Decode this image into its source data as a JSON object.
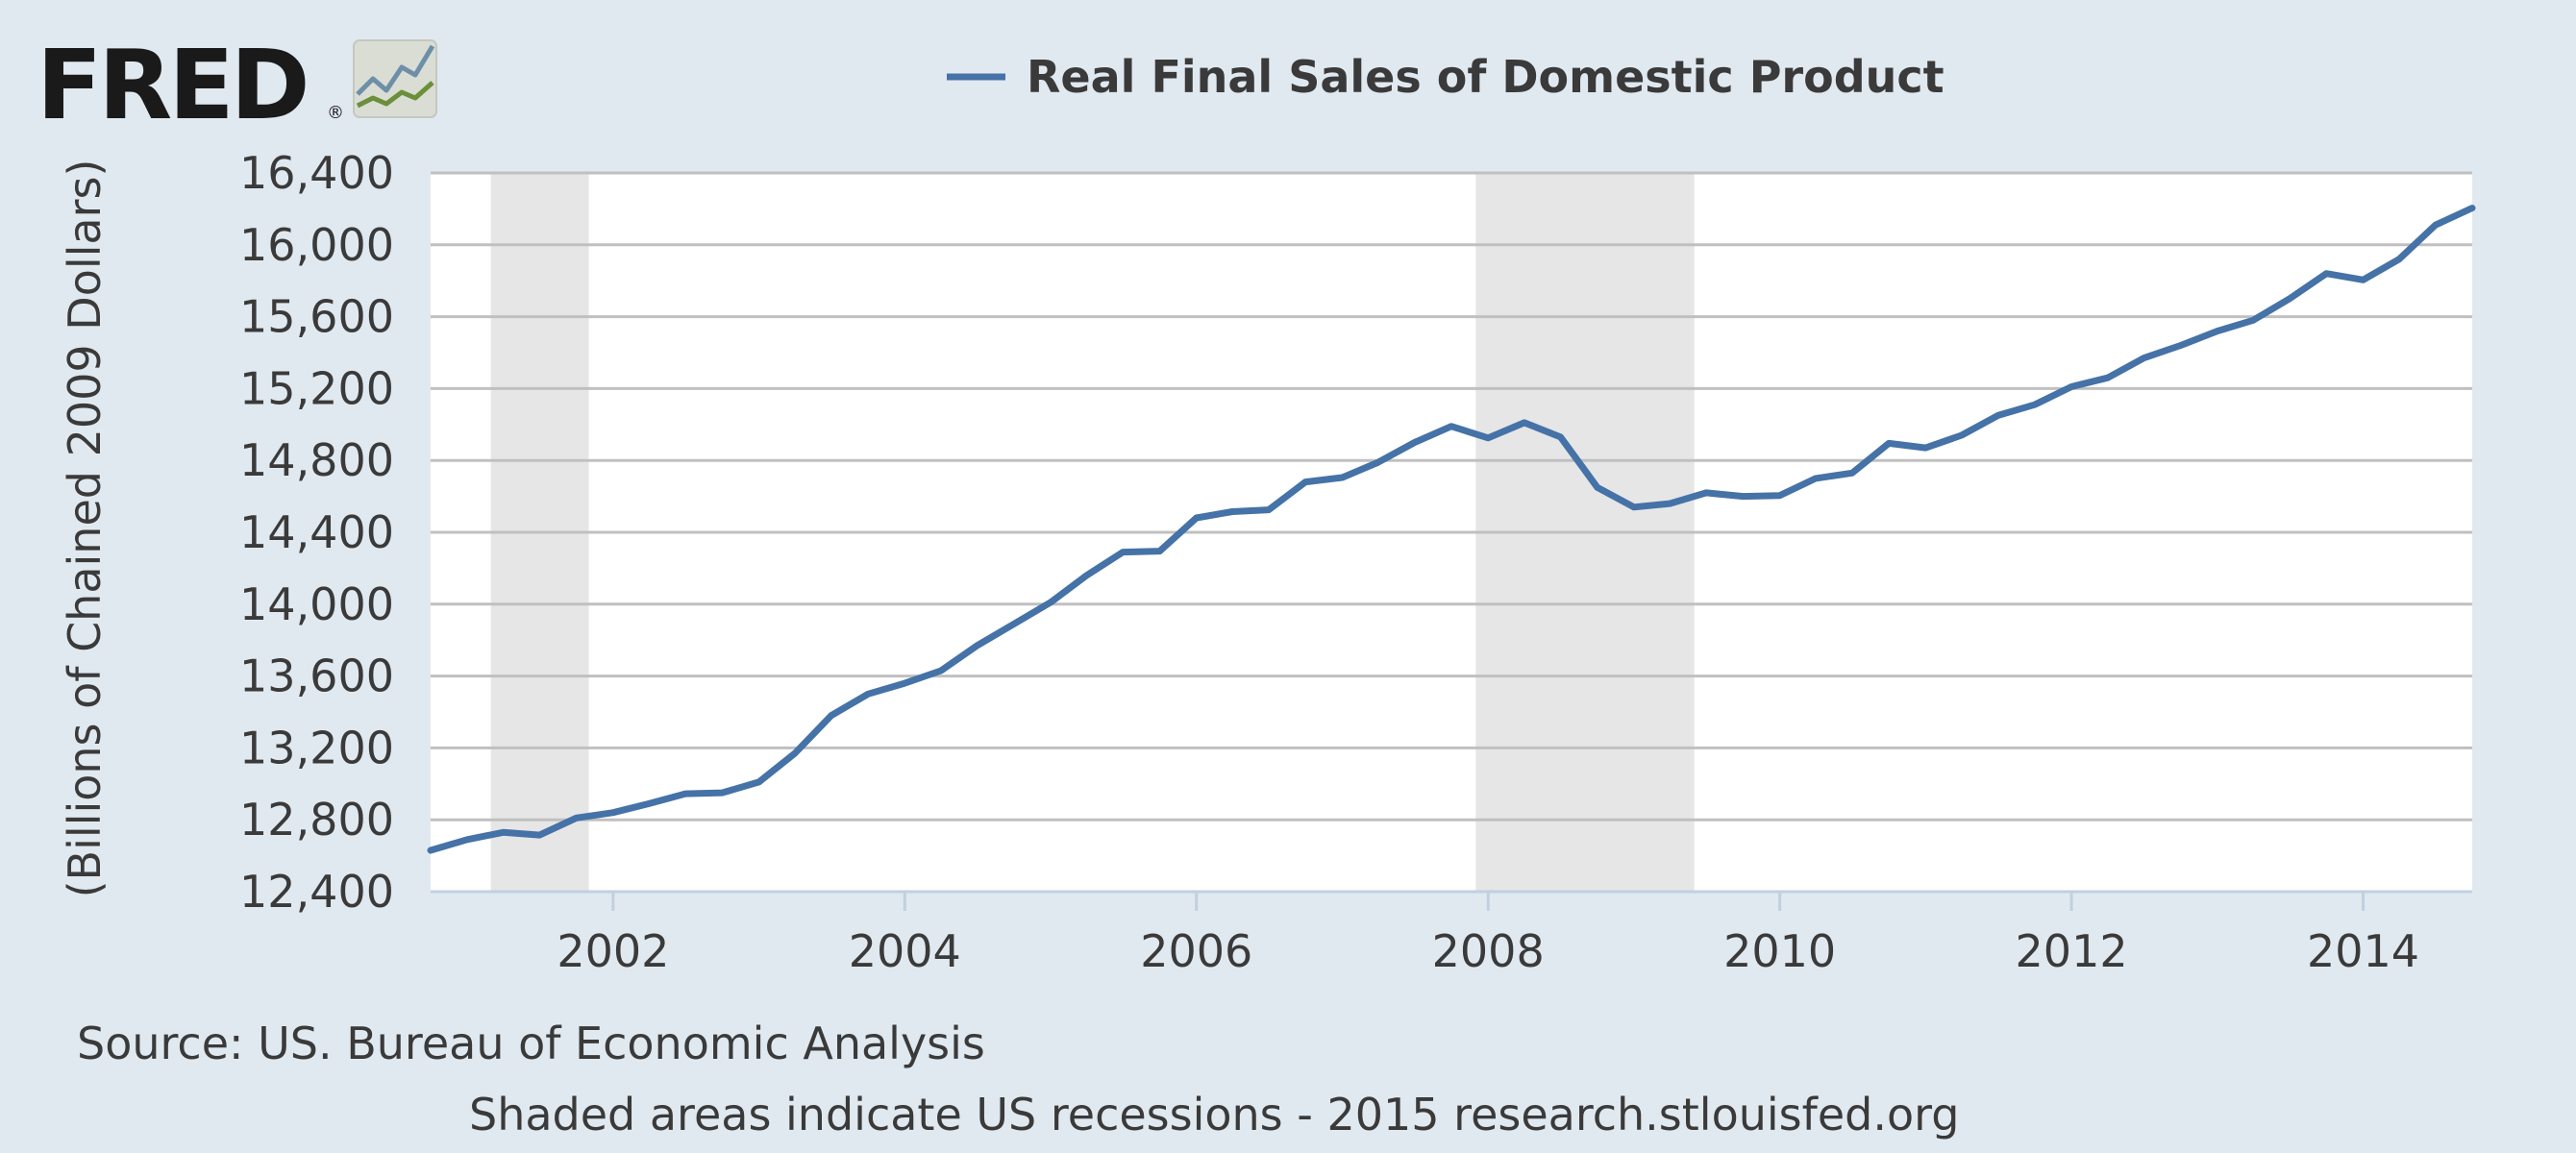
{
  "logo": {
    "text": "FRED",
    "mark": "®"
  },
  "colors": {
    "background": "#e1e9f0",
    "plot_background": "#ffffff",
    "line": "#4572a7",
    "recession_shade": "#e6e6e6",
    "grid": "#c0c0c0",
    "axis": "#c0d0e0",
    "text": "#3a3a3a"
  },
  "footer": {
    "source": "Source: US. Bureau of Economic Analysis",
    "note": "Shaded areas indicate US recessions - 2015 research.stlouisfed.org"
  },
  "chart_data": {
    "type": "line",
    "title": "",
    "xlabel": "",
    "ylabel": "(Billions of Chained 2009 Dollars)",
    "legend": {
      "position": "top-center",
      "entries": [
        "Real Final Sales of Domestic Product"
      ]
    },
    "grid": true,
    "xlim": [
      "2000-10-01",
      "2014-10-01"
    ],
    "ylim": [
      12400,
      16400
    ],
    "x_ticks": [
      "2002",
      "2004",
      "2006",
      "2008",
      "2010",
      "2012",
      "2014"
    ],
    "y_ticks": [
      "12,400",
      "12,800",
      "13,200",
      "13,600",
      "14,000",
      "14,400",
      "14,800",
      "15,200",
      "15,600",
      "16,000",
      "16,400"
    ],
    "recessions": [
      {
        "start": "2001-03-01",
        "end": "2001-11-01"
      },
      {
        "start": "2007-12-01",
        "end": "2009-06-01"
      }
    ],
    "series": [
      {
        "name": "Real Final Sales of Domestic Product",
        "x": [
          "2000-10-01",
          "2001-01-01",
          "2001-04-01",
          "2001-07-01",
          "2001-10-01",
          "2002-01-01",
          "2002-04-01",
          "2002-07-01",
          "2002-10-01",
          "2003-01-01",
          "2003-04-01",
          "2003-07-01",
          "2003-10-01",
          "2004-01-01",
          "2004-04-01",
          "2004-07-01",
          "2004-10-01",
          "2005-01-01",
          "2005-04-01",
          "2005-07-01",
          "2005-10-01",
          "2006-01-01",
          "2006-04-01",
          "2006-07-01",
          "2006-10-01",
          "2007-01-01",
          "2007-04-01",
          "2007-07-01",
          "2007-10-01",
          "2008-01-01",
          "2008-04-01",
          "2008-07-01",
          "2008-10-01",
          "2009-01-01",
          "2009-04-01",
          "2009-07-01",
          "2009-10-01",
          "2010-01-01",
          "2010-04-01",
          "2010-07-01",
          "2010-10-01",
          "2011-01-01",
          "2011-04-01",
          "2011-07-01",
          "2011-10-01",
          "2012-01-01",
          "2012-04-01",
          "2012-07-01",
          "2012-10-01",
          "2013-01-01",
          "2013-04-01",
          "2013-07-01",
          "2013-10-01",
          "2014-01-01",
          "2014-04-01",
          "2014-07-01",
          "2014-10-01"
        ],
        "values": [
          12630,
          12690,
          12730,
          12715,
          12810,
          12840,
          12890,
          12945,
          12950,
          13010,
          13170,
          13380,
          13500,
          13560,
          13630,
          13770,
          13890,
          14010,
          14160,
          14290,
          14295,
          14480,
          14515,
          14525,
          14680,
          14705,
          14790,
          14900,
          14990,
          14925,
          15010,
          14930,
          14650,
          14540,
          14560,
          14620,
          14600,
          14605,
          14700,
          14730,
          14895,
          14870,
          14940,
          15050,
          15110,
          15210,
          15260,
          15370,
          15440,
          15520,
          15580,
          15700,
          15840,
          15805,
          15920,
          16110,
          16205
        ]
      }
    ]
  }
}
